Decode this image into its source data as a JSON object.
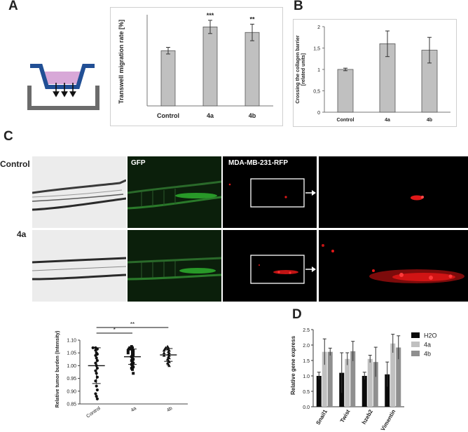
{
  "panels": {
    "a": "A",
    "b": "B",
    "c": "C",
    "d": "D"
  },
  "figure_c": {
    "row_labels": [
      "Control",
      "4a"
    ],
    "channel_labels": [
      "GFP",
      "MDA-MB-231-RFP"
    ],
    "colors": {
      "gfp": "#2fb82f",
      "rfp": "#e01818",
      "background": "#000000"
    }
  },
  "chart_data": [
    {
      "id": "A",
      "type": "bar",
      "ylabel": "Transwell migration rate [%]",
      "categories": [
        "Control",
        "4a",
        "4b"
      ],
      "values": [
        100,
        143,
        133
      ],
      "errors": [
        6,
        12,
        15
      ],
      "significance": [
        "",
        "***",
        "**"
      ],
      "ylim": [
        0,
        160
      ],
      "grid": false,
      "color": "#c0c0c0"
    },
    {
      "id": "B",
      "type": "bar",
      "ylabel": "Crossing the collagen barrier [related units]",
      "categories": [
        "Control",
        "4a",
        "4b"
      ],
      "values": [
        1.0,
        1.6,
        1.45
      ],
      "errors": [
        0.03,
        0.3,
        0.3
      ],
      "ylim": [
        0,
        2
      ],
      "yticks": [
        "0",
        "0,5",
        "1",
        "1,5",
        "2"
      ],
      "grid": false,
      "color": "#c0c0c0"
    },
    {
      "id": "C-quant",
      "type": "scatter",
      "ylabel": "Relative tumor burden (Intensity)",
      "categories": [
        "Control",
        "4a",
        "4b"
      ],
      "ylim": [
        0.85,
        1.1
      ],
      "yticks": [
        "0.85",
        "0.90",
        "0.95",
        "1.00",
        "1.05",
        "1.10"
      ],
      "means": [
        1.0,
        1.035,
        1.042
      ],
      "sd": [
        0.07,
        0.03,
        0.025
      ],
      "significance": [
        {
          "from": "Control",
          "to": "4a",
          "label": "*"
        },
        {
          "from": "Control",
          "to": "4b",
          "label": "**"
        }
      ],
      "series": [
        {
          "category": "Control",
          "marker": "circle",
          "values": [
            1.07,
            1.07,
            1.065,
            1.06,
            1.05,
            1.045,
            1.04,
            1.03,
            1.02,
            1.01,
            1.0,
            0.99,
            0.98,
            0.97,
            0.955,
            0.94,
            0.92,
            0.905,
            0.89,
            0.88,
            0.87
          ]
        },
        {
          "category": "4a",
          "marker": "square",
          "values": [
            1.075,
            1.07,
            1.07,
            1.065,
            1.065,
            1.06,
            1.06,
            1.055,
            1.05,
            1.05,
            1.045,
            1.04,
            1.035,
            1.03,
            1.025,
            1.02,
            1.015,
            1.01,
            1.005,
            1.0,
            0.995,
            0.99,
            0.985,
            0.97
          ]
        },
        {
          "category": "4b",
          "marker": "triangle",
          "values": [
            1.075,
            1.07,
            1.07,
            1.065,
            1.065,
            1.06,
            1.06,
            1.055,
            1.05,
            1.05,
            1.045,
            1.04,
            1.04,
            1.035,
            1.03,
            1.025,
            1.02,
            1.015,
            1.01,
            1.005,
            1.0
          ]
        }
      ]
    },
    {
      "id": "D",
      "type": "bar",
      "ylabel": "Relative gene express",
      "categories": [
        "Snail1",
        "Twist",
        "hzeb2",
        "Vimentin"
      ],
      "ylim": [
        0,
        2.5
      ],
      "yticks": [
        "0.0",
        "0.5",
        "1.0",
        "1.5",
        "2.0",
        "2.5"
      ],
      "series": [
        {
          "name": "H2O",
          "color": "#0a0a0a",
          "values": [
            1.0,
            1.1,
            1.0,
            1.05
          ],
          "errors": [
            0.12,
            0.65,
            0.12,
            0.4
          ]
        },
        {
          "name": "4a",
          "color": "#c0c0c0",
          "values": [
            1.78,
            1.55,
            1.55,
            2.05
          ],
          "errors": [
            0.42,
            0.2,
            0.12,
            0.3
          ]
        },
        {
          "name": "4b",
          "color": "#8f8f8f",
          "values": [
            1.78,
            1.8,
            1.45,
            1.92
          ],
          "errors": [
            0.12,
            0.32,
            0.48,
            0.38
          ]
        }
      ],
      "legend": "right"
    }
  ]
}
